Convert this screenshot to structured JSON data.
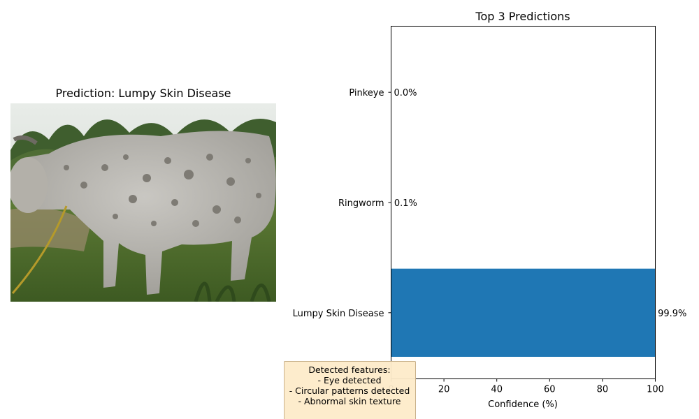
{
  "image_panel": {
    "title": "Prediction: Lumpy Skin Disease",
    "image_subject": "cow-with-skin-lesions-photo"
  },
  "chart_data": {
    "type": "bar",
    "orientation": "horizontal",
    "title": "Top 3 Predictions",
    "xlabel": "Confidence (%)",
    "ylabel": "",
    "categories": [
      "Lumpy Skin Disease",
      "Ringworm",
      "Pinkeye"
    ],
    "values": [
      99.9,
      0.1,
      0.0
    ],
    "value_labels": [
      "99.9%",
      "0.1%",
      "0.0%"
    ],
    "xlim": [
      0,
      100
    ],
    "xticks": [
      "0",
      "20",
      "40",
      "60",
      "80",
      "100"
    ],
    "bar_color": "#1f77b4",
    "grid": false
  },
  "annotation": {
    "lines": [
      "Detected features:",
      "- Eye detected",
      "- Circular patterns detected",
      "- Abnormal skin texture"
    ],
    "background_color": "#fdebc9",
    "border_color": "#c9b18b"
  }
}
